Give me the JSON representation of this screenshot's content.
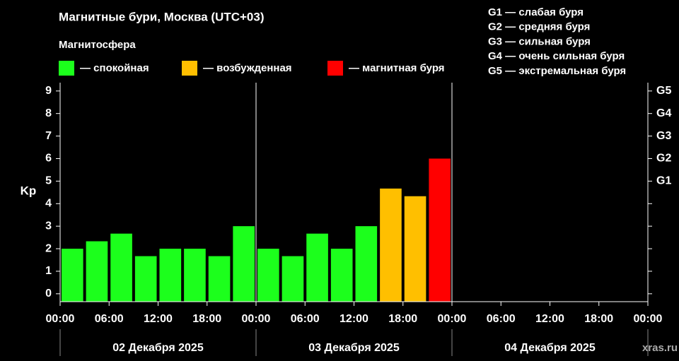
{
  "chart_data": {
    "type": "bar",
    "title": "Магнитные бури, Москва (UTC+03)",
    "legend_title": "Магнитосфера",
    "legend": [
      {
        "label": "— спокойная",
        "color": "#1cff1c"
      },
      {
        "label": "— возбужденная",
        "color": "#ffbf00"
      },
      {
        "label": "— магнитная буря",
        "color": "#ff0000"
      }
    ],
    "g_legend": [
      "G1 — слабая буря",
      "G2 — средняя буря",
      "G3 — сильная буря",
      "G4 — очень сильная буря",
      "G5 — экстремальная буря"
    ],
    "ylabel": "Kp",
    "watermark": "xras.ru",
    "x": [
      0,
      3,
      6,
      9,
      12,
      15,
      18,
      21,
      24,
      27,
      30,
      33,
      36,
      39,
      42,
      45
    ],
    "values": [
      2,
      2.33,
      2.67,
      1.67,
      2,
      2,
      1.67,
      3,
      2,
      1.67,
      2.67,
      2,
      3,
      4.67,
      4.33,
      6
    ],
    "colors": [
      "#1cff1c",
      "#1cff1c",
      "#1cff1c",
      "#1cff1c",
      "#1cff1c",
      "#1cff1c",
      "#1cff1c",
      "#1cff1c",
      "#1cff1c",
      "#1cff1c",
      "#1cff1c",
      "#1cff1c",
      "#1cff1c",
      "#ffbf00",
      "#ffbf00",
      "#ff0000"
    ],
    "xlim": [
      0,
      72
    ],
    "xticks": [
      {
        "value": 0,
        "label": "00:00"
      },
      {
        "value": 6,
        "label": "06:00"
      },
      {
        "value": 12,
        "label": "12:00"
      },
      {
        "value": 18,
        "label": "18:00"
      },
      {
        "value": 24,
        "label": "00:00"
      },
      {
        "value": 30,
        "label": "06:00"
      },
      {
        "value": 36,
        "label": "12:00"
      },
      {
        "value": 42,
        "label": "18:00"
      },
      {
        "value": 48,
        "label": "00:00"
      },
      {
        "value": 54,
        "label": "06:00"
      },
      {
        "value": 60,
        "label": "12:00"
      },
      {
        "value": 66,
        "label": "18:00"
      },
      {
        "value": 72,
        "label": "00:00"
      }
    ],
    "days": [
      {
        "label": "02 Декабря 2025",
        "start": 0,
        "end": 24
      },
      {
        "label": "03 Декабря 2025",
        "start": 24,
        "end": 48
      },
      {
        "label": "04 Декабря 2025",
        "start": 48,
        "end": 72
      }
    ],
    "ylim": [
      -0.35,
      9.37
    ],
    "yticks": [
      0,
      1,
      2,
      3,
      4,
      5,
      6,
      7,
      8,
      9
    ],
    "y2ticks": [
      {
        "value": 5,
        "label": "G1"
      },
      {
        "value": 6,
        "label": "G2"
      },
      {
        "value": 7,
        "label": "G3"
      },
      {
        "value": 8,
        "label": "G4"
      },
      {
        "value": 9,
        "label": "G5"
      }
    ]
  }
}
